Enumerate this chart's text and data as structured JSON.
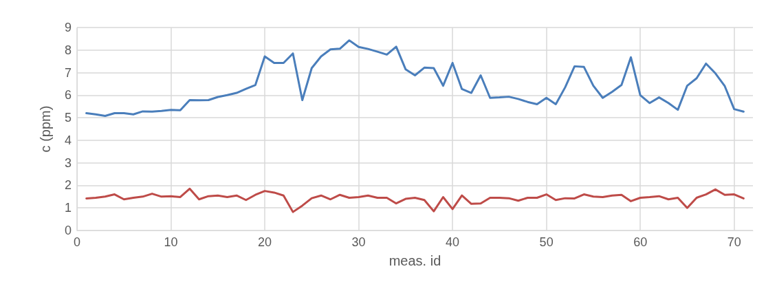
{
  "chart_data": {
    "type": "line",
    "xlabel": "meas. id",
    "ylabel": "c (ppm)",
    "x": [
      1,
      2,
      3,
      4,
      5,
      6,
      7,
      8,
      9,
      10,
      11,
      12,
      13,
      14,
      15,
      16,
      17,
      18,
      19,
      20,
      21,
      22,
      23,
      24,
      25,
      26,
      27,
      28,
      29,
      30,
      31,
      32,
      33,
      34,
      35,
      36,
      37,
      38,
      39,
      40,
      41,
      42,
      43,
      44,
      45,
      46,
      47,
      48,
      49,
      50,
      51,
      52,
      53,
      54,
      55,
      56,
      57,
      58,
      59,
      60,
      61,
      62,
      63,
      64,
      65,
      66,
      67,
      68,
      69,
      70,
      71
    ],
    "series": [
      {
        "color": "#4a7ebb",
        "values": [
          5.2,
          5.15,
          5.08,
          5.2,
          5.2,
          5.15,
          5.28,
          5.27,
          5.3,
          5.35,
          5.33,
          5.78,
          5.77,
          5.78,
          5.92,
          6.0,
          6.1,
          6.28,
          6.45,
          7.72,
          7.43,
          7.43,
          7.85,
          5.78,
          7.2,
          7.72,
          8.03,
          8.06,
          8.43,
          8.14,
          8.05,
          7.93,
          7.8,
          8.15,
          7.15,
          6.88,
          7.22,
          7.2,
          6.42,
          7.43,
          6.27,
          6.1,
          6.88,
          5.88,
          5.9,
          5.93,
          5.83,
          5.7,
          5.6,
          5.88,
          5.6,
          6.35,
          7.28,
          7.25,
          6.42,
          5.88,
          6.15,
          6.45,
          7.68,
          6.0,
          5.65,
          5.9,
          5.65,
          5.35,
          6.42,
          6.75,
          7.4,
          6.97,
          6.4,
          5.38,
          5.27
        ]
      },
      {
        "color": "#be4b48",
        "values": [
          1.42,
          1.45,
          1.5,
          1.6,
          1.38,
          1.45,
          1.5,
          1.63,
          1.5,
          1.52,
          1.48,
          1.85,
          1.38,
          1.52,
          1.55,
          1.48,
          1.55,
          1.35,
          1.58,
          1.75,
          1.68,
          1.55,
          0.82,
          1.1,
          1.43,
          1.55,
          1.38,
          1.58,
          1.45,
          1.48,
          1.55,
          1.45,
          1.45,
          1.2,
          1.4,
          1.45,
          1.35,
          0.85,
          1.48,
          0.95,
          1.55,
          1.18,
          1.2,
          1.45,
          1.45,
          1.43,
          1.32,
          1.45,
          1.45,
          1.6,
          1.35,
          1.43,
          1.42,
          1.6,
          1.5,
          1.48,
          1.55,
          1.58,
          1.3,
          1.45,
          1.48,
          1.52,
          1.38,
          1.45,
          1.0,
          1.45,
          1.6,
          1.82,
          1.58,
          1.6,
          1.42
        ]
      }
    ],
    "xlim": [
      0,
      72
    ],
    "xticks": [
      0,
      10,
      20,
      30,
      40,
      50,
      60,
      70
    ],
    "ylim": [
      0,
      9
    ],
    "yticks": [
      0,
      1,
      2,
      3,
      4,
      5,
      6,
      7,
      8,
      9
    ],
    "grid": true,
    "marker": "none",
    "line_style": "solid"
  }
}
